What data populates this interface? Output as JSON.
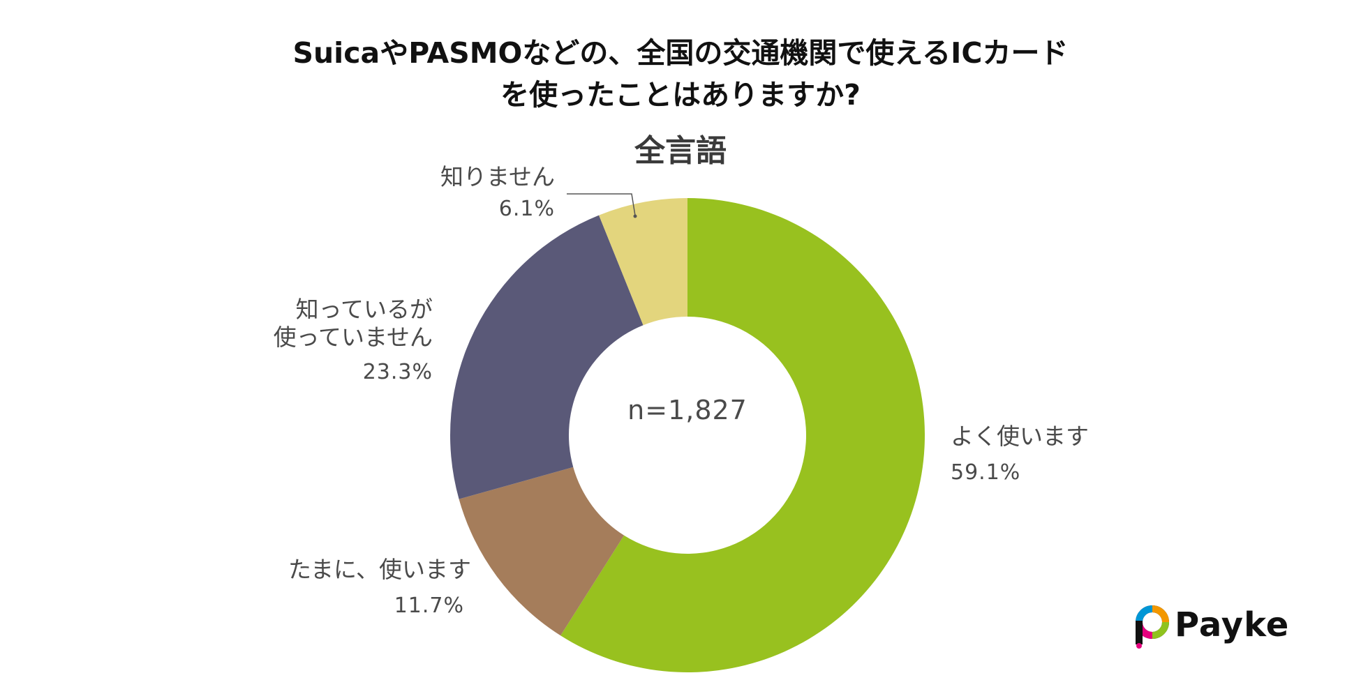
{
  "title_line1": "SuicaやPASMOなどの、全国の交通機関で使えるICカード",
  "title_line2": "を使ったことはありますか?",
  "subtitle": "全言語",
  "center_label": "n=1,827",
  "logo_text": "Payke",
  "chart_data": {
    "type": "pie",
    "donut": true,
    "title": "SuicaやPASMOなどの、全国の交通機関で使えるICカードを使ったことはありますか?",
    "subtitle": "全言語",
    "sample_size": "n=1,827",
    "slices": [
      {
        "label": "よく使います",
        "label_lines": [
          "よく使います"
        ],
        "value": 59.1,
        "value_text": "59.1%",
        "color": "#98c11f"
      },
      {
        "label": "たまに、使います",
        "label_lines": [
          "たまに、使います"
        ],
        "value": 11.7,
        "value_text": "11.7%",
        "color": "#a57d5b"
      },
      {
        "label": "知っているが使っていません",
        "label_lines": [
          "知っているが",
          "使っていません"
        ],
        "value": 23.3,
        "value_text": "23.3%",
        "color": "#5a5978"
      },
      {
        "label": "知りません",
        "label_lines": [
          "知りません"
        ],
        "value": 6.1,
        "value_text": "6.1%",
        "color": "#e3d57d"
      }
    ],
    "start_angle": "12 o'clock",
    "direction": "clockwise",
    "legend": "none (labels beside slices)"
  },
  "colors": {
    "background": "#ffffff",
    "leader_line": "#555555",
    "logo_colors": [
      "#e6007e",
      "#f39800",
      "#0096d6",
      "#8fc31f",
      "#111111"
    ]
  }
}
